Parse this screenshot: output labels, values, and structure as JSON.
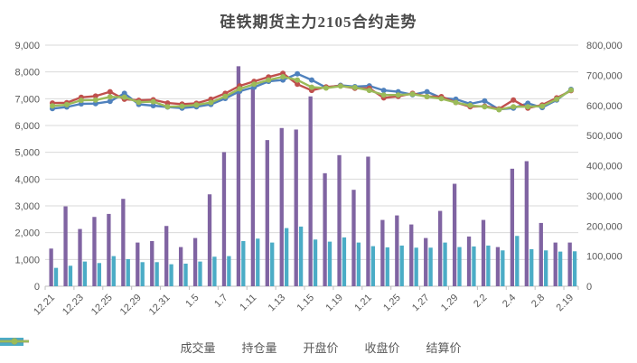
{
  "title": "硅铁期货主力2105合约走势",
  "chart_data": {
    "type": "combo-bar-line",
    "title": "硅铁期货主力2105合约走势",
    "grid": true,
    "legend_position": "bottom",
    "label_every": 2,
    "categories": [
      "12.21",
      "",
      "12.23",
      "",
      "12.25",
      "",
      "12.29",
      "",
      "12.31",
      "",
      "1.5",
      "",
      "1.7",
      "",
      "1.11",
      "",
      "1.13",
      "",
      "1.15",
      "",
      "1.19",
      "",
      "1.21",
      "",
      "1.25",
      "",
      "1.27",
      "",
      "1.29",
      "",
      "2.2",
      "",
      "2.4",
      "",
      "2.8",
      "",
      "2.19"
    ],
    "left_axis": {
      "min": 0,
      "max": 9000,
      "step": 1000,
      "tick_labels": [
        "0",
        "1,000",
        "2,000",
        "3,000",
        "4,000",
        "5,000",
        "6,000",
        "7,000",
        "8,000",
        "9,000"
      ]
    },
    "right_axis": {
      "min": 0,
      "max": 800000,
      "step": 100000,
      "tick_labels": [
        "0",
        "100,000",
        "200,000",
        "300,000",
        "400,000",
        "500,000",
        "600,000",
        "700,000",
        "800,000"
      ]
    },
    "colors": {
      "volume": "#8064A2",
      "open_interest": "#4BACC6",
      "open": "#4F81BD",
      "close": "#C0504D",
      "settlement": "#9BBB59",
      "gridline": "#D9D9D9",
      "axis_line": "#BFBFBF",
      "text": "#595959"
    },
    "series": [
      {
        "name": "成交量",
        "type": "bar",
        "axis": "right",
        "color": "#8064A2",
        "values": [
          125000,
          265000,
          190000,
          230000,
          240000,
          290000,
          145000,
          150000,
          200000,
          130000,
          160000,
          305000,
          445000,
          730000,
          660000,
          485000,
          525000,
          520000,
          630000,
          375000,
          435000,
          320000,
          430000,
          220000,
          235000,
          205000,
          160000,
          250000,
          340000,
          165000,
          220000,
          130000,
          390000,
          415000,
          210000,
          145000,
          145000
        ]
      },
      {
        "name": "持仓量",
        "type": "bar",
        "axis": "right",
        "color": "#4BACC6",
        "values": [
          61000,
          68000,
          82000,
          77000,
          100000,
          90000,
          80000,
          80000,
          73000,
          75000,
          82000,
          98000,
          100000,
          150000,
          158000,
          145000,
          193000,
          198000,
          155000,
          148000,
          162000,
          145000,
          133000,
          129000,
          135000,
          128000,
          128000,
          145000,
          130000,
          132000,
          135000,
          119000,
          167000,
          123000,
          119000,
          115000,
          116000
        ]
      },
      {
        "name": "开盘价",
        "type": "line",
        "axis": "left",
        "color": "#4F81BD",
        "values": [
          6630,
          6690,
          6810,
          6820,
          6900,
          7200,
          6790,
          6740,
          6690,
          6650,
          6700,
          6790,
          7010,
          7280,
          7430,
          7650,
          7700,
          7930,
          7700,
          7420,
          7500,
          7450,
          7480,
          7310,
          7260,
          7150,
          7260,
          7030,
          6980,
          6810,
          6920,
          6600,
          6650,
          6830,
          6670,
          6950,
          7350
        ]
      },
      {
        "name": "收盘价",
        "type": "line",
        "axis": "left",
        "color": "#C0504D",
        "values": [
          6840,
          6850,
          7050,
          7100,
          7260,
          6980,
          6940,
          6960,
          6840,
          6800,
          6830,
          6980,
          7200,
          7480,
          7650,
          7810,
          7950,
          7540,
          7310,
          7440,
          7480,
          7390,
          7390,
          7030,
          7090,
          7200,
          7080,
          7080,
          6860,
          6700,
          6720,
          6620,
          6950,
          6650,
          6770,
          7030,
          7300
        ]
      },
      {
        "name": "结算价",
        "type": "line",
        "axis": "left",
        "color": "#9BBB59",
        "values": [
          6730,
          6780,
          6940,
          6950,
          7070,
          7060,
          6870,
          6890,
          6700,
          6720,
          6770,
          6860,
          7090,
          7370,
          7540,
          7700,
          7820,
          7700,
          7430,
          7400,
          7470,
          7420,
          7310,
          7140,
          7140,
          7170,
          7080,
          7000,
          6860,
          6750,
          6700,
          6590,
          6700,
          6700,
          6720,
          6980,
          7320
        ]
      }
    ]
  }
}
